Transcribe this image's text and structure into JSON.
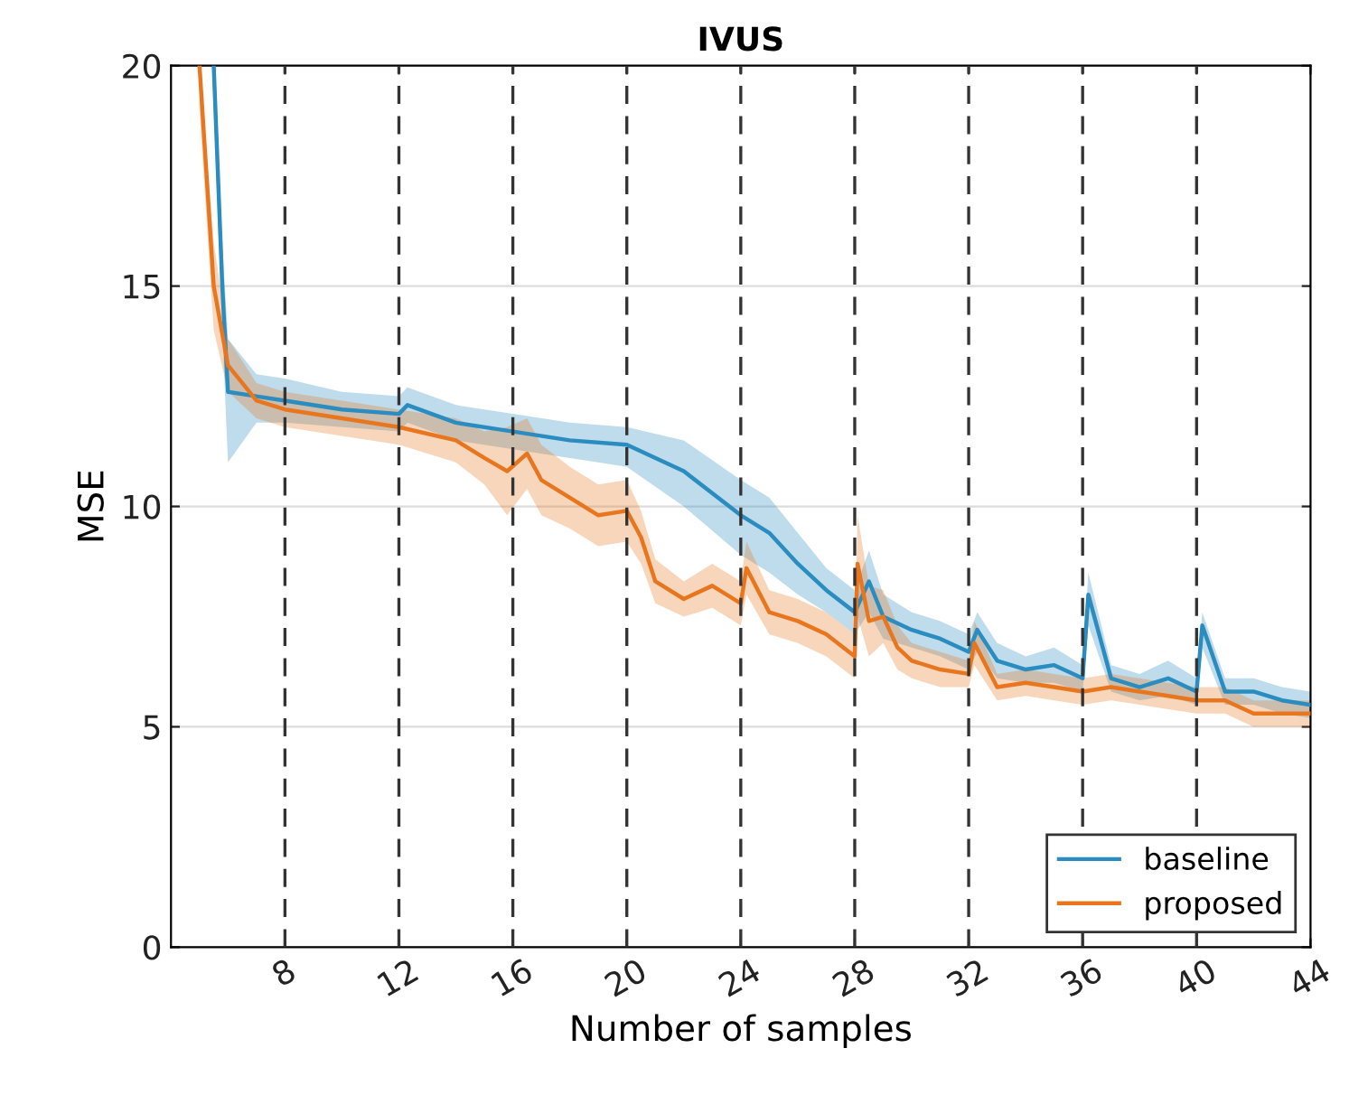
{
  "chart_data": {
    "type": "line",
    "title": "IVUS",
    "xlabel": "Number of samples",
    "ylabel": "MSE",
    "xlim": [
      4,
      44
    ],
    "ylim": [
      0,
      20
    ],
    "xticks": [
      8,
      12,
      16,
      20,
      24,
      28,
      32,
      36,
      40,
      44
    ],
    "yticks": [
      0,
      5,
      10,
      15,
      20
    ],
    "grid": "y",
    "legend": "bottom right",
    "line_style": "solid",
    "marker": "none",
    "ref_lines": [
      {
        "axis": "x",
        "value": 8,
        "color": "#333333",
        "line_style": "dashed"
      },
      {
        "axis": "x",
        "value": 12,
        "color": "#333333",
        "line_style": "dashed"
      },
      {
        "axis": "x",
        "value": 16,
        "color": "#333333",
        "line_style": "dashed"
      },
      {
        "axis": "x",
        "value": 20,
        "color": "#333333",
        "line_style": "dashed"
      },
      {
        "axis": "x",
        "value": 24,
        "color": "#333333",
        "line_style": "dashed"
      },
      {
        "axis": "x",
        "value": 28,
        "color": "#333333",
        "line_style": "dashed"
      },
      {
        "axis": "x",
        "value": 32,
        "color": "#333333",
        "line_style": "dashed"
      },
      {
        "axis": "x",
        "value": 36,
        "color": "#333333",
        "line_style": "dashed"
      },
      {
        "axis": "x",
        "value": 40,
        "color": "#333333",
        "line_style": "dashed"
      }
    ],
    "series": [
      {
        "name": "baseline",
        "color": "#2a8cbf",
        "x": [
          5.5,
          5.8,
          6,
          7,
          8,
          10,
          12,
          12.3,
          14,
          16,
          18,
          20,
          22,
          24,
          25,
          26,
          27,
          28,
          28.5,
          29,
          30,
          31,
          32,
          32.3,
          33,
          34,
          35,
          36,
          36.2,
          37,
          38,
          39,
          40,
          40.2,
          41,
          42,
          43,
          44
        ],
        "values": [
          20,
          15,
          12.6,
          12.5,
          12.4,
          12.2,
          12.1,
          12.3,
          11.9,
          11.7,
          11.5,
          11.4,
          10.8,
          9.8,
          9.4,
          8.7,
          8.1,
          7.6,
          8.3,
          7.5,
          7.2,
          7.0,
          6.7,
          7.2,
          6.5,
          6.3,
          6.4,
          6.1,
          8.0,
          6.1,
          5.9,
          6.1,
          5.8,
          7.3,
          5.8,
          5.8,
          5.6,
          5.5
        ],
        "lower": [
          19,
          14,
          11.0,
          11.9,
          11.9,
          11.8,
          11.7,
          11.9,
          11.5,
          11.3,
          11.1,
          10.9,
          10.0,
          8.9,
          8.5,
          8.0,
          7.6,
          7.1,
          7.6,
          7.0,
          6.8,
          6.6,
          6.3,
          6.7,
          6.1,
          6.0,
          6.0,
          5.8,
          7.3,
          5.8,
          5.6,
          5.7,
          5.5,
          6.8,
          5.5,
          5.5,
          5.3,
          5.2
        ],
        "upper": [
          20,
          16,
          13.8,
          13.0,
          12.9,
          12.6,
          12.5,
          12.7,
          12.3,
          12.1,
          11.9,
          11.8,
          11.5,
          10.6,
          10.2,
          9.4,
          8.6,
          8.1,
          9.0,
          8.0,
          7.6,
          7.4,
          7.1,
          7.6,
          6.9,
          6.6,
          6.8,
          6.4,
          8.5,
          6.4,
          6.2,
          6.5,
          6.1,
          7.6,
          6.1,
          6.1,
          5.9,
          5.8
        ]
      },
      {
        "name": "proposed",
        "color": "#e8761f",
        "x": [
          5,
          5.5,
          6,
          6.5,
          7,
          8,
          10,
          12,
          14,
          15,
          15.8,
          16.5,
          17,
          18,
          19,
          20,
          20.5,
          21,
          22,
          23,
          24,
          24.2,
          25,
          26,
          27,
          28,
          28.1,
          28.5,
          29,
          29.5,
          30,
          31,
          32,
          32.2,
          33,
          34,
          35,
          36,
          37,
          38,
          39,
          40,
          41,
          42,
          43,
          44
        ],
        "values": [
          20,
          15,
          13.2,
          12.8,
          12.4,
          12.2,
          12.0,
          11.8,
          11.5,
          11.1,
          10.8,
          11.2,
          10.6,
          10.2,
          9.8,
          9.9,
          9.3,
          8.3,
          7.9,
          8.2,
          7.8,
          8.6,
          7.6,
          7.4,
          7.1,
          6.6,
          8.7,
          7.4,
          7.5,
          6.8,
          6.5,
          6.3,
          6.2,
          6.9,
          5.9,
          6.0,
          5.9,
          5.8,
          5.9,
          5.8,
          5.7,
          5.6,
          5.6,
          5.3,
          5.3,
          5.3
        ],
        "lower": [
          19,
          14,
          12.6,
          12.3,
          12.0,
          11.8,
          11.6,
          11.4,
          11.0,
          10.5,
          9.8,
          10.4,
          9.8,
          9.5,
          9.1,
          9.2,
          8.7,
          7.8,
          7.5,
          7.7,
          7.3,
          8.0,
          7.1,
          6.9,
          6.6,
          6.1,
          7.5,
          6.6,
          6.9,
          6.3,
          6.1,
          5.9,
          5.9,
          6.4,
          5.6,
          5.7,
          5.6,
          5.5,
          5.6,
          5.5,
          5.4,
          5.3,
          5.3,
          5.0,
          5.0,
          5.0
        ],
        "upper": [
          20,
          16,
          13.8,
          13.3,
          12.8,
          12.6,
          12.4,
          12.2,
          12.0,
          11.7,
          11.8,
          12.0,
          11.4,
          10.9,
          10.5,
          10.6,
          9.9,
          8.8,
          8.3,
          8.7,
          8.3,
          9.2,
          8.1,
          7.9,
          7.6,
          7.1,
          9.8,
          8.2,
          8.1,
          7.3,
          6.9,
          6.7,
          6.5,
          7.4,
          6.2,
          6.3,
          6.2,
          6.1,
          6.2,
          6.1,
          6.0,
          5.9,
          5.9,
          5.6,
          5.6,
          5.6
        ]
      }
    ]
  }
}
